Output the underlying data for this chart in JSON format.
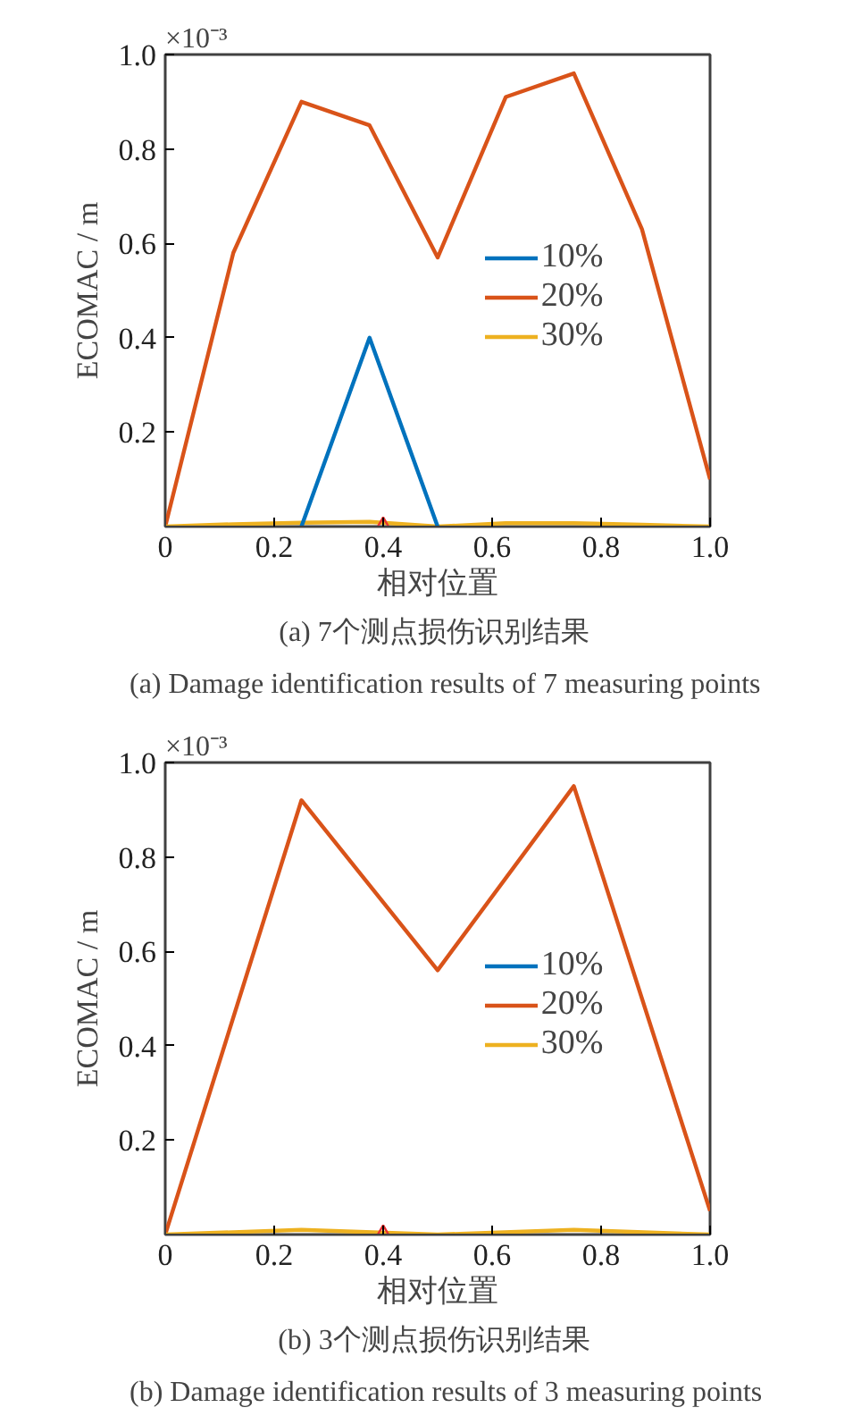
{
  "chart_data": [
    {
      "type": "line",
      "title": "(a)  7个测点损伤识别结果",
      "subtitle": "(a)  Damage identification results of 7 measuring points",
      "xlabel": "相对位置",
      "ylabel": "ECOMAC / m",
      "annotations": [
        "×10⁻³"
      ],
      "x": [
        0,
        0.125,
        0.25,
        0.375,
        0.5,
        0.625,
        0.75,
        0.875,
        1.0
      ],
      "series": [
        {
          "name": "10%",
          "color": "#0072bd",
          "values": [
            null,
            null,
            0,
            0.4,
            0,
            null,
            null,
            null,
            null
          ]
        },
        {
          "name": "20%",
          "color": "#d95319",
          "values": [
            0,
            0.58,
            0.9,
            0.85,
            0.57,
            0.91,
            0.96,
            0.63,
            0.1
          ]
        },
        {
          "name": "30%",
          "color": "#edb120",
          "values": [
            0,
            0.005,
            0.008,
            0.01,
            0,
            0.007,
            0.007,
            0.004,
            0
          ]
        },
        {
          "type": "scatter",
          "marker": "triangle",
          "color": "#e83030",
          "x": [
            0.4
          ],
          "values": [
            0
          ]
        }
      ],
      "xlim": [
        0,
        1
      ],
      "ylim": [
        0,
        1
      ],
      "xticks": [
        0,
        0.2,
        0.4,
        0.6,
        0.8,
        {
          "value": 1,
          "label": "1.0"
        }
      ],
      "yticks": [
        0.2,
        0.4,
        0.6,
        0.8,
        {
          "value": 1,
          "label": "1.0"
        }
      ],
      "legend": "center right",
      "grid": false,
      "line_style": "solid",
      "marker": "none"
    },
    {
      "type": "line",
      "title": "(b)  3个测点损伤识别结果",
      "subtitle": "(b)  Damage identification results of 3 measuring points",
      "xlabel": "相对位置",
      "ylabel": "ECOMAC / m",
      "annotations": [
        "×10⁻³"
      ],
      "x": [
        0,
        0.25,
        0.5,
        0.75,
        1.0
      ],
      "series": [
        {
          "name": "10%",
          "color": "#0072bd",
          "values": [
            null,
            null,
            null,
            null,
            null
          ]
        },
        {
          "name": "20%",
          "color": "#d95319",
          "values": [
            0,
            0.92,
            0.56,
            0.95,
            0.05
          ]
        },
        {
          "name": "30%",
          "color": "#edb120",
          "values": [
            0,
            0.01,
            0,
            0.01,
            0
          ]
        },
        {
          "type": "scatter",
          "marker": "triangle",
          "color": "#e83030",
          "x": [
            0.4
          ],
          "values": [
            0
          ]
        }
      ],
      "xlim": [
        0,
        1
      ],
      "ylim": [
        0,
        1
      ],
      "xticks": [
        0,
        0.2,
        0.4,
        0.6,
        0.8,
        {
          "value": 1,
          "label": "1.0"
        }
      ],
      "yticks": [
        0.2,
        0.4,
        0.6,
        0.8,
        {
          "value": 1,
          "label": "1.0"
        }
      ],
      "legend": "center right",
      "grid": false,
      "line_style": "solid",
      "marker": "none"
    }
  ]
}
